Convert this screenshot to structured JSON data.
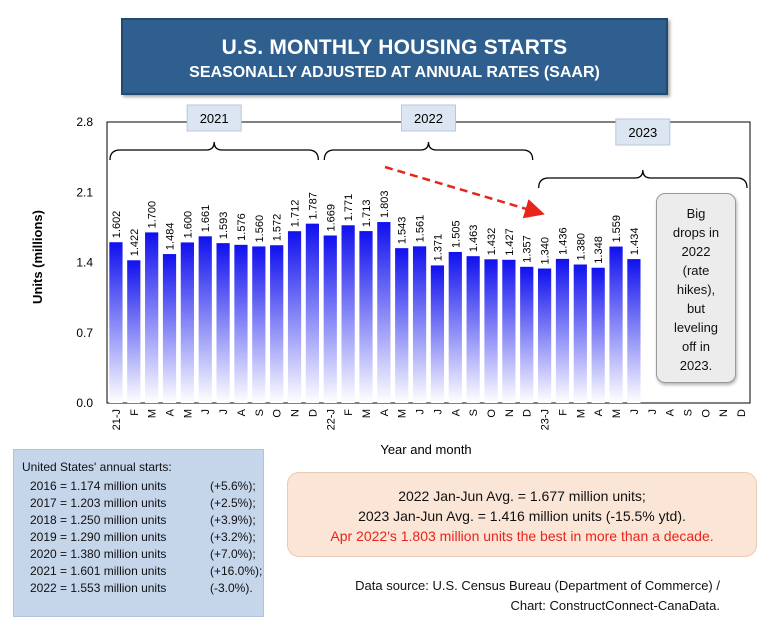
{
  "title": "U.S. MONTHLY HOUSING STARTS",
  "subtitle": "SEASONALLY ADJUSTED AT ANNUAL RATES (SAAR)",
  "note": [
    "Big",
    "drops in",
    "2022",
    "(rate",
    "hikes),",
    "but",
    "leveling",
    "off in",
    "2023."
  ],
  "annual": {
    "heading": "United States' annual starts:",
    "rows": [
      {
        "year": "2016 = 1.174 million units",
        "change": "(+5.6%);"
      },
      {
        "year": "2017 = 1.203 million units",
        "change": "(+2.5%);"
      },
      {
        "year": "2018 = 1.250 million units",
        "change": "(+3.9%);"
      },
      {
        "year": "2019 = 1.290 million units",
        "change": "(+3.2%);"
      },
      {
        "year": "2020 = 1.380 million units",
        "change": "(+7.0%);"
      },
      {
        "year": "2021 = 1.601 million units",
        "change": "(+16.0%);"
      },
      {
        "year": "2022 = 1.553 million units",
        "change": "(-3.0%)."
      }
    ]
  },
  "averages": {
    "line1": "2022 Jan-Jun Avg. = 1.677 million units;",
    "line2": "2023 Jan-Jun Avg. = 1.416 million units (-15.5% ytd).",
    "line3": "Apr 2022's 1.803 million units the best in more than a decade."
  },
  "source": {
    "line1": "Data source: U.S. Census Bureau (Department of Commerce) /",
    "line2": "Chart: ConstructConnect-CanaData."
  },
  "chart_data": {
    "type": "bar",
    "xlabel": "Year and month",
    "ylabel": "Units (millions)",
    "ylim": [
      0,
      2.8
    ],
    "yticks": [
      "0.0",
      "0.7",
      "1.4",
      "2.1",
      "2.8"
    ],
    "categories": [
      "21-J",
      "F",
      "M",
      "A",
      "M",
      "J",
      "J",
      "A",
      "S",
      "O",
      "N",
      "D",
      "22-J",
      "F",
      "M",
      "A",
      "M",
      "J",
      "J",
      "A",
      "S",
      "O",
      "N",
      "D",
      "23-J",
      "F",
      "M",
      "A",
      "M",
      "J",
      "J",
      "A",
      "S",
      "O",
      "N",
      "D"
    ],
    "values": [
      1.602,
      1.422,
      1.7,
      1.484,
      1.6,
      1.661,
      1.593,
      1.576,
      1.56,
      1.572,
      1.712,
      1.787,
      1.669,
      1.771,
      1.713,
      1.803,
      1.543,
      1.561,
      1.371,
      1.505,
      1.463,
      1.432,
      1.427,
      1.357,
      1.34,
      1.436,
      1.38,
      1.348,
      1.559,
      1.434,
      null,
      null,
      null,
      null,
      null,
      null
    ],
    "labels": [
      "1.602",
      "1.422",
      "1.700",
      "1.484",
      "1.600",
      "1.661",
      "1.593",
      "1.576",
      "1.560",
      "1.572",
      "1.712",
      "1.787",
      "1.669",
      "1.771",
      "1.713",
      "1.803",
      "1.543",
      "1.561",
      "1.371",
      "1.505",
      "1.463",
      "1.432",
      "1.427",
      "1.357",
      "1.340",
      "1.436",
      "1.380",
      "1.348",
      "1.559",
      "1.434"
    ],
    "year_brackets": [
      "2021",
      "2022",
      "2023"
    ],
    "colors": {
      "bar_top": "#1010ee",
      "bar_bottom": "#ffffff",
      "arrow": "#e8241b",
      "label_box": "#dce6f2"
    }
  }
}
